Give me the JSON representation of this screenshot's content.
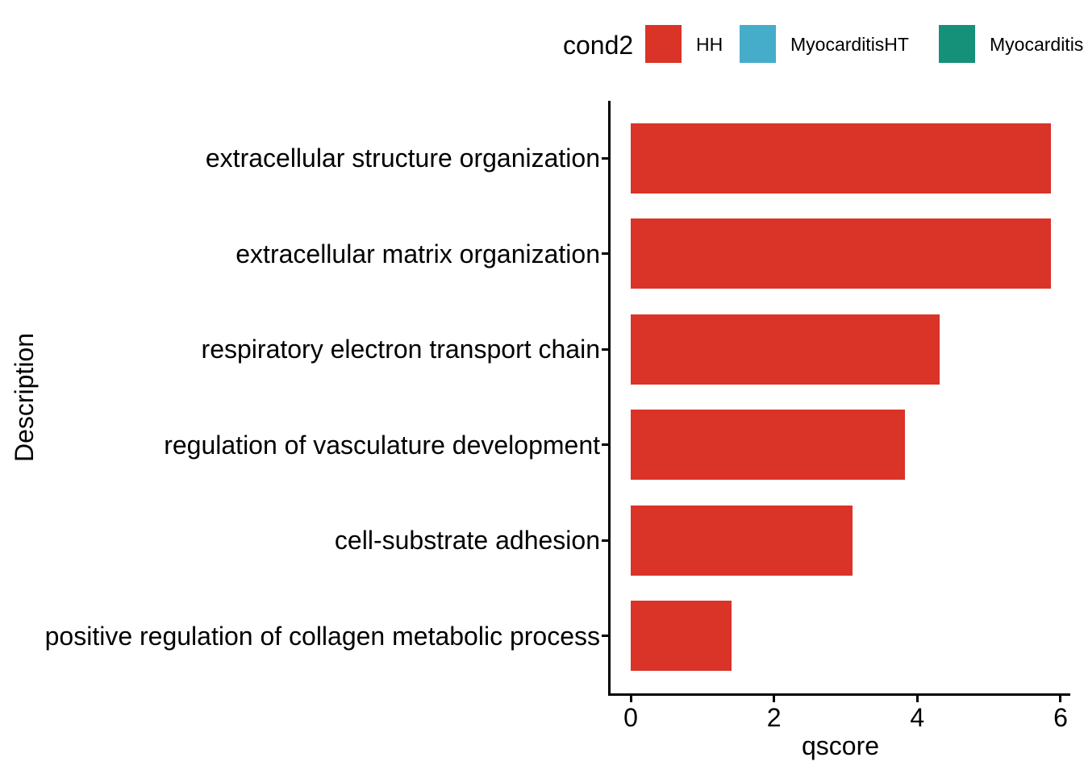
{
  "legend": {
    "title": "cond2",
    "items": [
      {
        "label": "HH",
        "color": "#DA3327"
      },
      {
        "label": "MyocarditisHT",
        "color": "#45ADC9"
      },
      {
        "label": "Myocarditis",
        "color": "#149178",
        "clipped": true
      }
    ]
  },
  "chart_data": {
    "type": "bar",
    "orientation": "horizontal",
    "title": "",
    "xlabel": "qscore",
    "ylabel": "Description",
    "categories": [
      "extracellular structure organization",
      "extracellular matrix organization",
      "respiratory electron transport chain",
      "regulation of vasculature development",
      "cell-substrate adhesion",
      "positive regulation of collagen metabolic process"
    ],
    "series": [
      {
        "name": "HH",
        "values": [
          5.87,
          5.87,
          4.31,
          3.83,
          3.1,
          1.41
        ]
      }
    ],
    "bar_color": "#DA3327",
    "xticks": [
      0,
      2,
      4,
      6
    ],
    "axis_range": [
      -0.29,
      6.14
    ],
    "grid": false,
    "legend_position": "top"
  }
}
